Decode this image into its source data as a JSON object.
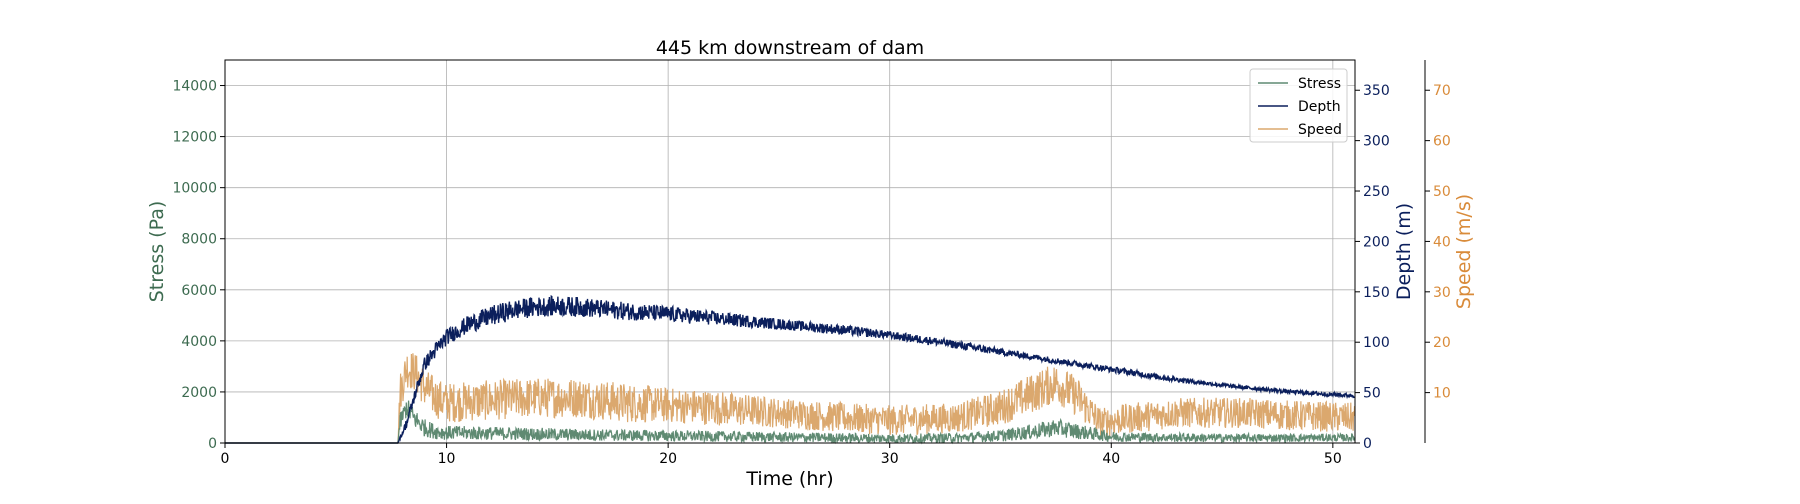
{
  "chart_data": {
    "type": "line",
    "title": "445 km downstream of dam",
    "xlabel": "Time (hr)",
    "xlim": [
      0,
      51
    ],
    "xticks": [
      0,
      10,
      20,
      30,
      40,
      50
    ],
    "grid": true,
    "legend_position": "top-right",
    "axes": {
      "stress": {
        "label": "Stress (Pa)",
        "ylim": [
          0,
          15000
        ],
        "ticks": [
          0,
          2000,
          4000,
          6000,
          8000,
          10000,
          12000,
          14000
        ],
        "side": "left",
        "color": "#3d6b50"
      },
      "depth": {
        "label": "Depth (m)",
        "ylim": [
          0,
          380
        ],
        "ticks": [
          0,
          50,
          100,
          150,
          200,
          250,
          300,
          350
        ],
        "side": "right",
        "color": "#0b1f5c"
      },
      "speed": {
        "label": "Speed (m/s)",
        "ylim": [
          0,
          76
        ],
        "ticks": [
          10,
          20,
          30,
          40,
          50,
          60,
          70
        ],
        "side": "right-outer",
        "color": "#d98b3a"
      }
    },
    "series": [
      {
        "name": "Stress",
        "axis": "stress",
        "color": "#5f8a72",
        "x": [
          0,
          7.8,
          7.9,
          8.2,
          8.5,
          9,
          9.5,
          10,
          12,
          14,
          16,
          18,
          20,
          22,
          25,
          28,
          30,
          33,
          35,
          36.5,
          37.5,
          38.5,
          40,
          42,
          45,
          48,
          51
        ],
        "y": [
          0,
          0,
          800,
          1400,
          1000,
          600,
          450,
          400,
          380,
          350,
          320,
          300,
          280,
          260,
          230,
          200,
          180,
          200,
          280,
          450,
          600,
          450,
          250,
          220,
          200,
          200,
          210
        ],
        "noise": [
          0,
          0,
          350,
          400,
          400,
          350,
          300,
          280,
          260,
          250,
          240,
          230,
          220,
          210,
          200,
          190,
          180,
          190,
          230,
          300,
          350,
          300,
          200,
          180,
          170,
          160,
          150
        ]
      },
      {
        "name": "Depth",
        "axis": "depth",
        "color": "#0b1f5c",
        "x": [
          0,
          7.8,
          8.2,
          8.6,
          9,
          9.5,
          10,
          11,
          12,
          13,
          14,
          15,
          16,
          17,
          18,
          20,
          22,
          24,
          26,
          28,
          30,
          32,
          34,
          36,
          38,
          40,
          42,
          44,
          46,
          48,
          50,
          51
        ],
        "y": [
          0,
          0,
          20,
          50,
          78,
          92,
          105,
          118,
          126,
          132,
          135,
          136,
          135,
          133,
          131,
          128,
          124,
          120,
          116,
          112,
          107,
          101,
          94,
          87,
          80,
          73,
          66,
          60,
          55,
          51,
          48,
          47
        ],
        "noise": [
          0,
          0,
          5,
          6,
          7,
          8,
          8,
          9,
          10,
          10,
          10,
          10,
          10,
          9,
          9,
          8,
          7,
          6,
          5,
          5,
          4,
          4,
          4,
          3,
          3,
          3,
          3,
          2,
          2,
          2,
          2,
          2
        ]
      },
      {
        "name": "Speed",
        "axis": "speed",
        "color": "#dba86e",
        "x": [
          0,
          7.8,
          7.9,
          8.2,
          8.6,
          9,
          9.5,
          10,
          12,
          14,
          16,
          18,
          20,
          22,
          25,
          28,
          30,
          33,
          35,
          36.5,
          37.5,
          38.5,
          39.5,
          41,
          43,
          46,
          48,
          51
        ],
        "y": [
          0,
          0,
          10,
          15,
          14,
          11,
          9,
          8,
          8.5,
          9,
          9,
          8,
          7.5,
          7,
          6,
          5,
          4.5,
          5,
          7,
          10,
          12,
          9,
          4,
          5,
          6,
          6,
          5.5,
          5
        ],
        "noise": [
          0,
          0,
          4,
          4,
          4,
          4,
          4,
          4,
          4,
          4,
          4,
          4,
          3.5,
          3.5,
          3,
          3,
          3,
          3,
          3.5,
          4,
          4,
          4,
          3,
          3,
          3,
          3,
          3,
          3
        ]
      }
    ]
  }
}
